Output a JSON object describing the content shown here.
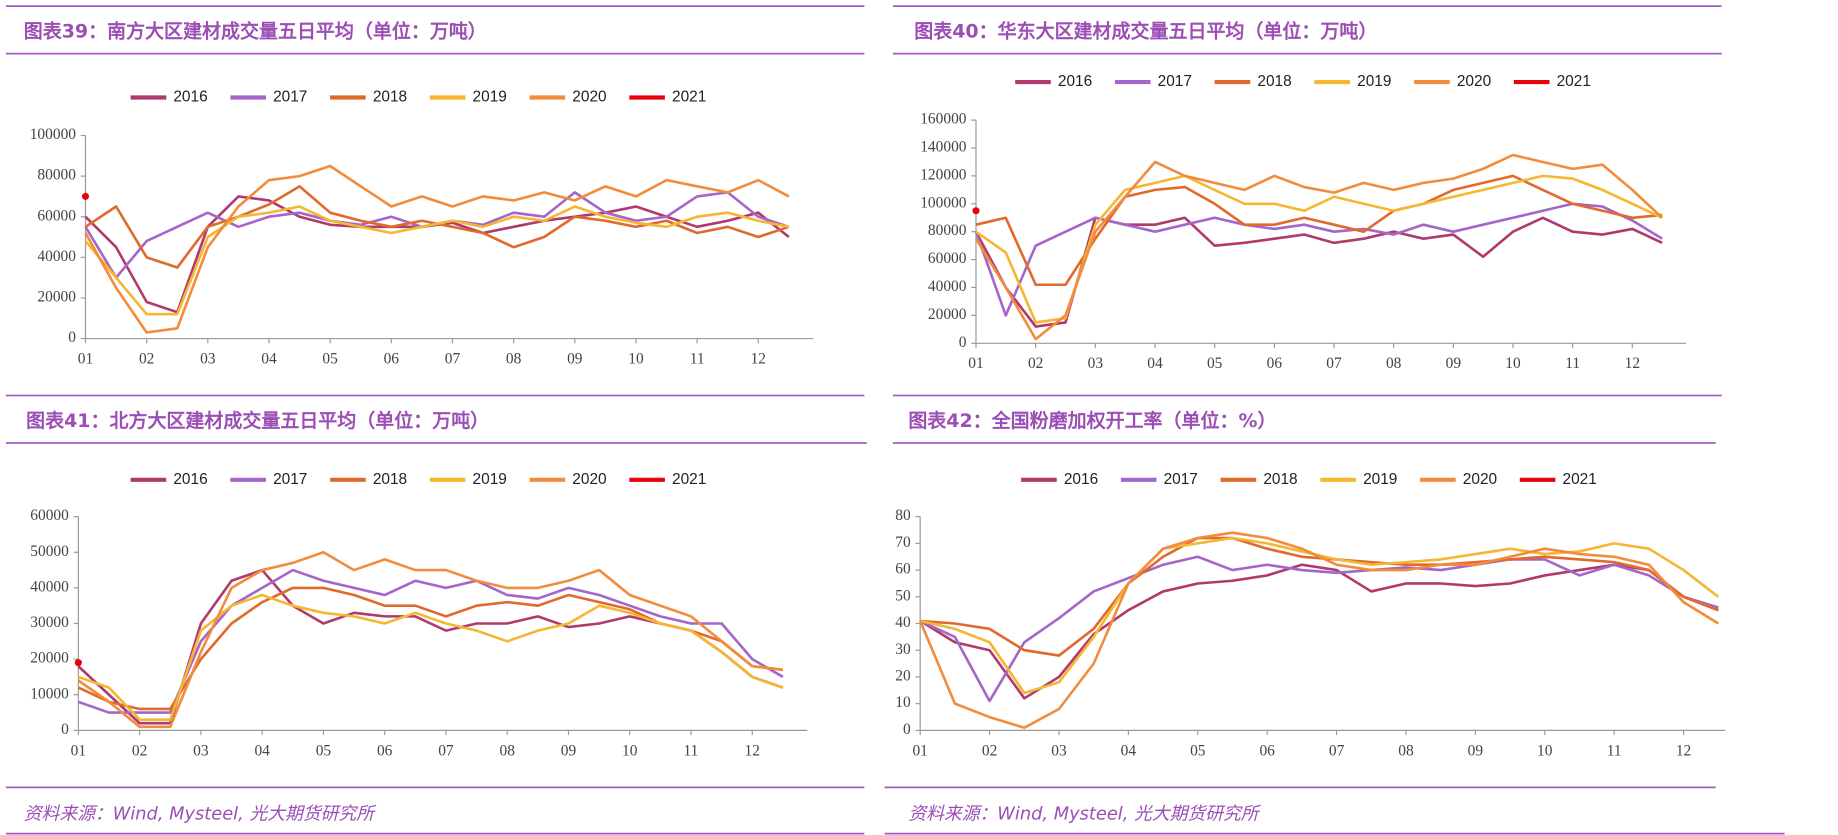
{
  "chart_data": [
    {
      "type": "line",
      "title": "图表39：南方大区建材成交量五日平均（单位：万吨）",
      "x": [
        1,
        1.5,
        2,
        2.5,
        3,
        3.5,
        4,
        4.5,
        5,
        5.5,
        6,
        6.5,
        7,
        7.5,
        8,
        8.5,
        9,
        9.5,
        10,
        10.5,
        11,
        11.5,
        12,
        12.5
      ],
      "xlim": [
        1,
        12.9
      ],
      "xticks": [
        {
          "value": 1,
          "label": "01"
        },
        {
          "value": 2,
          "label": "02"
        },
        {
          "value": 3,
          "label": "03"
        },
        {
          "value": 4,
          "label": "04"
        },
        {
          "value": 5,
          "label": "05"
        },
        {
          "value": 6,
          "label": "06"
        },
        {
          "value": 7,
          "label": "07"
        },
        {
          "value": 8,
          "label": "08"
        },
        {
          "value": 9,
          "label": "09"
        },
        {
          "value": 10,
          "label": "10"
        },
        {
          "value": 11,
          "label": "11"
        },
        {
          "value": 12,
          "label": "12"
        }
      ],
      "ylim": [
        0,
        100000
      ],
      "yticks": [
        0,
        20000,
        40000,
        60000,
        80000,
        100000
      ],
      "series": [
        {
          "name": "2016",
          "color": "#b03a6e",
          "values": [
            60000,
            45000,
            18000,
            13000,
            55000,
            70000,
            68000,
            60000,
            56000,
            55000,
            55000,
            55000,
            57000,
            52000,
            55000,
            58000,
            60000,
            62000,
            65000,
            60000,
            55000,
            58000,
            62000,
            50000
          ]
        },
        {
          "name": "2017",
          "color": "#a466c8",
          "values": [
            55000,
            30000,
            48000,
            55000,
            62000,
            55000,
            60000,
            62000,
            58000,
            56000,
            60000,
            55000,
            58000,
            56000,
            62000,
            60000,
            72000,
            62000,
            58000,
            60000,
            70000,
            72000,
            60000,
            55000
          ]
        },
        {
          "name": "2018",
          "color": "#e06a2c",
          "values": [
            55000,
            65000,
            40000,
            35000,
            55000,
            60000,
            66000,
            75000,
            62000,
            58000,
            55000,
            58000,
            55000,
            52000,
            45000,
            50000,
            60000,
            58000,
            55000,
            58000,
            52000,
            55000,
            50000,
            55000
          ]
        },
        {
          "name": "2019",
          "color": "#f5b731",
          "values": [
            48000,
            30000,
            12000,
            12000,
            50000,
            60000,
            62000,
            65000,
            58000,
            55000,
            52000,
            55000,
            58000,
            55000,
            60000,
            58000,
            65000,
            60000,
            57000,
            55000,
            60000,
            62000,
            58000,
            55000
          ]
        },
        {
          "name": "2020",
          "color": "#f28c3c",
          "values": [
            52000,
            25000,
            3000,
            5000,
            45000,
            65000,
            78000,
            80000,
            85000,
            75000,
            65000,
            70000,
            65000,
            70000,
            68000,
            72000,
            68000,
            75000,
            70000,
            78000,
            75000,
            72000,
            78000,
            70000
          ]
        },
        {
          "name": "2021",
          "color": "#e8000b",
          "values": [
            70000,
            null,
            null,
            null,
            null,
            null,
            null,
            null,
            null,
            null,
            null,
            null,
            null,
            null,
            null,
            null,
            null,
            null,
            null,
            null,
            null,
            null,
            null,
            null
          ]
        }
      ]
    },
    {
      "type": "line",
      "title": "图表40：华东大区建材成交量五日平均（单位：万吨）",
      "x": [
        1,
        1.5,
        2,
        2.5,
        3,
        3.5,
        4,
        4.5,
        5,
        5.5,
        6,
        6.5,
        7,
        7.5,
        8,
        8.5,
        9,
        9.5,
        10,
        10.5,
        11,
        11.5,
        12,
        12.5
      ],
      "xlim": [
        1,
        12.9
      ],
      "xticks": [
        {
          "value": 1,
          "label": "01"
        },
        {
          "value": 2,
          "label": "02"
        },
        {
          "value": 3,
          "label": "03"
        },
        {
          "value": 4,
          "label": "04"
        },
        {
          "value": 5,
          "label": "05"
        },
        {
          "value": 6,
          "label": "06"
        },
        {
          "value": 7,
          "label": "07"
        },
        {
          "value": 8,
          "label": "08"
        },
        {
          "value": 9,
          "label": "09"
        },
        {
          "value": 10,
          "label": "10"
        },
        {
          "value": 11,
          "label": "11"
        },
        {
          "value": 12,
          "label": "12"
        }
      ],
      "ylim": [
        0,
        160000
      ],
      "yticks": [
        0,
        20000,
        40000,
        60000,
        80000,
        100000,
        120000,
        140000,
        160000
      ],
      "series": [
        {
          "name": "2016",
          "color": "#b03a6e",
          "values": [
            80000,
            40000,
            12000,
            15000,
            90000,
            85000,
            85000,
            90000,
            70000,
            72000,
            75000,
            78000,
            72000,
            75000,
            80000,
            75000,
            78000,
            62000,
            80000,
            90000,
            80000,
            78000,
            82000,
            72000
          ]
        },
        {
          "name": "2017",
          "color": "#a466c8",
          "values": [
            80000,
            20000,
            70000,
            80000,
            90000,
            85000,
            80000,
            85000,
            90000,
            85000,
            82000,
            85000,
            80000,
            82000,
            78000,
            85000,
            80000,
            85000,
            90000,
            95000,
            100000,
            98000,
            88000,
            75000
          ]
        },
        {
          "name": "2018",
          "color": "#e06a2c",
          "values": [
            85000,
            90000,
            42000,
            42000,
            75000,
            105000,
            110000,
            112000,
            100000,
            85000,
            85000,
            90000,
            85000,
            80000,
            95000,
            100000,
            110000,
            115000,
            120000,
            110000,
            100000,
            95000,
            90000,
            92000
          ]
        },
        {
          "name": "2019",
          "color": "#f5b731",
          "values": [
            80000,
            65000,
            15000,
            18000,
            85000,
            110000,
            115000,
            120000,
            110000,
            100000,
            100000,
            95000,
            105000,
            100000,
            95000,
            100000,
            105000,
            110000,
            115000,
            120000,
            118000,
            110000,
            100000,
            90000
          ]
        },
        {
          "name": "2020",
          "color": "#f28c3c",
          "values": [
            75000,
            40000,
            3000,
            20000,
            80000,
            105000,
            130000,
            120000,
            115000,
            110000,
            120000,
            112000,
            108000,
            115000,
            110000,
            115000,
            118000,
            125000,
            135000,
            130000,
            125000,
            128000,
            110000,
            90000
          ]
        },
        {
          "name": "2021",
          "color": "#e8000b",
          "values": [
            95000,
            null,
            null,
            null,
            null,
            null,
            null,
            null,
            null,
            null,
            null,
            null,
            null,
            null,
            null,
            null,
            null,
            null,
            null,
            null,
            null,
            null,
            null,
            null
          ]
        }
      ]
    },
    {
      "type": "line",
      "title": "图表41：北方大区建材成交量五日平均（单位：万吨）",
      "source": "资料来源：Wind, Mysteel, 光大期货研究所",
      "x": [
        1,
        1.5,
        2,
        2.5,
        3,
        3.5,
        4,
        4.5,
        5,
        5.5,
        6,
        6.5,
        7,
        7.5,
        8,
        8.5,
        9,
        9.5,
        10,
        10.5,
        11,
        11.5,
        12,
        12.5
      ],
      "xlim": [
        1,
        12.9
      ],
      "xticks": [
        {
          "value": 1,
          "label": "01"
        },
        {
          "value": 2,
          "label": "02"
        },
        {
          "value": 3,
          "label": "03"
        },
        {
          "value": 4,
          "label": "04"
        },
        {
          "value": 5,
          "label": "05"
        },
        {
          "value": 6,
          "label": "06"
        },
        {
          "value": 7,
          "label": "07"
        },
        {
          "value": 8,
          "label": "08"
        },
        {
          "value": 9,
          "label": "09"
        },
        {
          "value": 10,
          "label": "10"
        },
        {
          "value": 11,
          "label": "11"
        },
        {
          "value": 12,
          "label": "12"
        }
      ],
      "ylim": [
        0,
        60000
      ],
      "yticks": [
        0,
        10000,
        20000,
        30000,
        40000,
        50000,
        60000
      ],
      "series": [
        {
          "name": "2016",
          "color": "#b03a6e",
          "values": [
            18000,
            10000,
            2000,
            2000,
            30000,
            42000,
            45000,
            35000,
            30000,
            33000,
            32000,
            32000,
            28000,
            30000,
            30000,
            32000,
            29000,
            30000,
            32000,
            30000,
            28000,
            22000,
            15000,
            12000
          ]
        },
        {
          "name": "2017",
          "color": "#a466c8",
          "values": [
            8000,
            5000,
            5000,
            5000,
            25000,
            35000,
            40000,
            45000,
            42000,
            40000,
            38000,
            42000,
            40000,
            42000,
            38000,
            37000,
            40000,
            38000,
            35000,
            32000,
            30000,
            30000,
            20000,
            15000
          ]
        },
        {
          "name": "2018",
          "color": "#e06a2c",
          "values": [
            12000,
            8000,
            6000,
            6000,
            20000,
            30000,
            36000,
            40000,
            40000,
            38000,
            35000,
            35000,
            32000,
            35000,
            36000,
            35000,
            38000,
            36000,
            34000,
            30000,
            28000,
            25000,
            18000,
            17000
          ]
        },
        {
          "name": "2019",
          "color": "#f5b731",
          "values": [
            15000,
            12000,
            3000,
            3000,
            28000,
            35000,
            38000,
            35000,
            33000,
            32000,
            30000,
            33000,
            30000,
            28000,
            25000,
            28000,
            30000,
            35000,
            33000,
            30000,
            28000,
            22000,
            15000,
            12000
          ]
        },
        {
          "name": "2020",
          "color": "#f28c3c",
          "values": [
            14000,
            8000,
            1000,
            1000,
            22000,
            40000,
            45000,
            47000,
            50000,
            45000,
            48000,
            45000,
            45000,
            42000,
            40000,
            40000,
            42000,
            45000,
            38000,
            35000,
            32000,
            25000,
            18000,
            17000
          ]
        },
        {
          "name": "2021",
          "color": "#e8000b",
          "values": [
            19000,
            null,
            null,
            null,
            null,
            null,
            null,
            null,
            null,
            null,
            null,
            null,
            null,
            null,
            null,
            null,
            null,
            null,
            null,
            null,
            null,
            null,
            null,
            null
          ]
        }
      ]
    },
    {
      "type": "line",
      "title": "图表42：全国粉磨加权开工率（单位：%）",
      "source": "资料来源：Wind, Mysteel, 光大期货研究所",
      "x": [
        1,
        1.5,
        2,
        2.5,
        3,
        3.5,
        4,
        4.5,
        5,
        5.5,
        6,
        6.5,
        7,
        7.5,
        8,
        8.5,
        9,
        9.5,
        10,
        10.5,
        11,
        11.5,
        12,
        12.5
      ],
      "xlim": [
        1,
        12.6
      ],
      "xticks": [
        {
          "value": 1,
          "label": "01"
        },
        {
          "value": 2,
          "label": "02"
        },
        {
          "value": 3,
          "label": "03"
        },
        {
          "value": 4,
          "label": "04"
        },
        {
          "value": 5,
          "label": "05"
        },
        {
          "value": 6,
          "label": "06"
        },
        {
          "value": 7,
          "label": "07"
        },
        {
          "value": 8,
          "label": "08"
        },
        {
          "value": 9,
          "label": "09"
        },
        {
          "value": 10,
          "label": "10"
        },
        {
          "value": 11,
          "label": "11"
        },
        {
          "value": 12,
          "label": "12"
        }
      ],
      "ylim": [
        0,
        80
      ],
      "yticks": [
        0,
        10,
        20,
        30,
        40,
        50,
        60,
        70,
        80
      ],
      "series": [
        {
          "name": "2016",
          "color": "#b03a6e",
          "values": [
            41,
            33,
            30,
            12,
            20,
            36,
            45,
            52,
            55,
            56,
            58,
            62,
            60,
            52,
            55,
            55,
            54,
            55,
            58,
            60,
            62,
            60,
            50,
            45
          ]
        },
        {
          "name": "2017",
          "color": "#a466c8",
          "values": [
            41,
            35,
            11,
            33,
            42,
            52,
            57,
            62,
            65,
            60,
            62,
            60,
            59,
            60,
            61,
            60,
            62,
            64,
            64,
            58,
            62,
            58,
            50,
            46
          ]
        },
        {
          "name": "2018",
          "color": "#e06a2c",
          "values": [
            41,
            40,
            38,
            30,
            28,
            38,
            55,
            65,
            72,
            72,
            68,
            65,
            64,
            63,
            62,
            62,
            63,
            64,
            65,
            64,
            63,
            60,
            50,
            45
          ]
        },
        {
          "name": "2019",
          "color": "#f5b731",
          "values": [
            41,
            38,
            33,
            14,
            18,
            35,
            55,
            68,
            70,
            72,
            70,
            67,
            64,
            62,
            63,
            64,
            66,
            68,
            66,
            67,
            70,
            68,
            60,
            50
          ]
        },
        {
          "name": "2020",
          "color": "#f28c3c",
          "values": [
            41,
            10,
            5,
            1,
            8,
            25,
            55,
            68,
            72,
            74,
            72,
            68,
            62,
            60,
            60,
            62,
            62,
            65,
            68,
            66,
            65,
            62,
            48,
            40
          ]
        },
        {
          "name": "2021",
          "color": "#e8000b",
          "values": [
            null,
            null,
            null,
            null,
            null,
            null,
            null,
            null,
            null,
            null,
            null,
            null,
            null,
            null,
            null,
            null,
            null,
            null,
            null,
            null,
            null,
            null,
            null,
            null
          ]
        }
      ]
    }
  ]
}
